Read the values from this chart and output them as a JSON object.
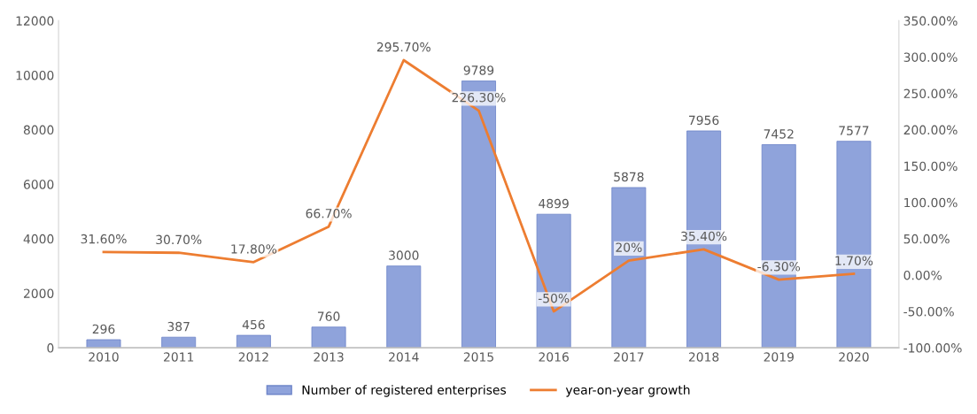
{
  "chart_data": {
    "type": "bar",
    "categories": [
      "2010",
      "2011",
      "2012",
      "2013",
      "2014",
      "2015",
      "2016",
      "2017",
      "2018",
      "2019",
      "2020"
    ],
    "series": [
      {
        "name": "Number of registered enterprises",
        "color": "#8fa3db",
        "values": [
          296,
          387,
          456,
          760,
          3000,
          9789,
          4899,
          5878,
          7956,
          7452,
          7577
        ],
        "value_labels": [
          "296",
          "387",
          "456",
          "760",
          "3000",
          "9789",
          "4899",
          "5878",
          "7956",
          "7452",
          "7577"
        ]
      },
      {
        "name": "year-on-year growth",
        "type": "line",
        "axis": "y2",
        "color": "#ed7d31",
        "values": [
          31.6,
          30.7,
          17.8,
          66.7,
          295.7,
          226.3,
          -50,
          20,
          35.4,
          -6.3,
          1.7
        ],
        "value_labels": [
          "31.60%",
          "30.70%",
          "17.80%",
          "66.70%",
          "295.70%",
          "226.30%",
          "-50%",
          "20%",
          "35.40%",
          "-6.30%",
          "1.70%"
        ]
      }
    ],
    "ylim": [
      0,
      12000
    ],
    "yticks": [
      0,
      2000,
      4000,
      6000,
      8000,
      10000,
      12000
    ],
    "y2lim": [
      -100,
      350
    ],
    "y2ticks": [
      {
        "value": -100,
        "label": "-100.00%"
      },
      {
        "value": -50,
        "label": "-50.00%"
      },
      {
        "value": 0,
        "label": "0.00%"
      },
      {
        "value": 50,
        "label": "50.00%"
      },
      {
        "value": 100,
        "label": "100.00%"
      },
      {
        "value": 150,
        "label": "150.00%"
      },
      {
        "value": 200,
        "label": "200.00%"
      },
      {
        "value": 250,
        "label": "250.00%"
      },
      {
        "value": 300,
        "label": "300.00%"
      },
      {
        "value": 350,
        "label": "350.00%"
      }
    ],
    "legend": "bottom",
    "marker": "none"
  }
}
